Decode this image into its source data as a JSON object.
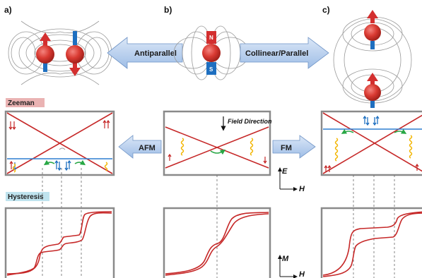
{
  "panels": {
    "a": "a)",
    "b": "b)",
    "c": "c)"
  },
  "magnets": {
    "north": "N",
    "south": "S"
  },
  "arrows": {
    "antiparallel": "Antiparallel",
    "collinear": "Collinear/Parallel",
    "afm": "AFM",
    "fm": "FM"
  },
  "sections": {
    "zeeman": "Zeeman",
    "hysteresis": "Hysteresis"
  },
  "annotations": {
    "field_direction": "Field Direction"
  },
  "axes": {
    "energy_label": "E",
    "field_label": "H",
    "magnetization_label": "M",
    "field_label_bottom": "H"
  },
  "colors": {
    "sphere": "#d32f2f",
    "spin_up": "#c62828",
    "spin_down": "#1e6fc0",
    "level_line": "#c62828",
    "blue_level": "#2f7fd0",
    "transition": "#f2b500",
    "green_arrow": "#28a745",
    "arrow_fill": "#b8d0ee",
    "zeeman_tag": "#eab3b3",
    "hysteresis_tag": "#bfe3ee"
  }
}
